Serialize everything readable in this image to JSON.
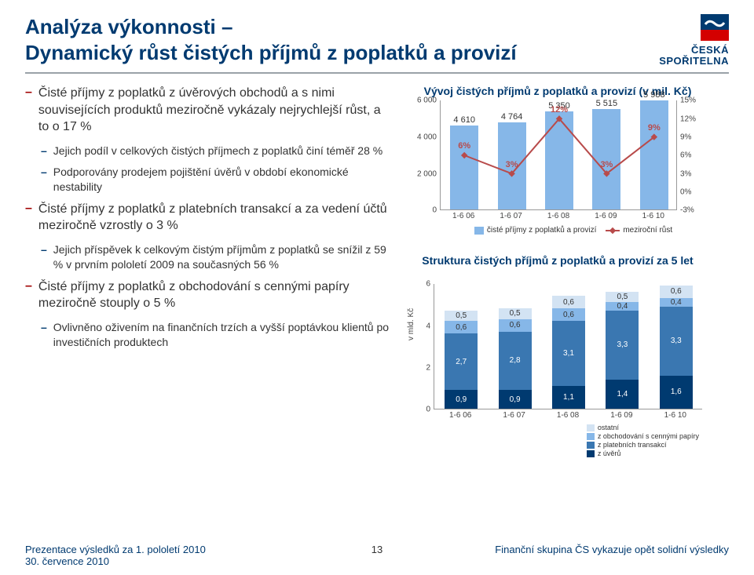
{
  "colors": {
    "brand_blue": "#003a70",
    "accent_red": "#a00000",
    "bar_blue": "#86b7e8",
    "line_red": "#b84b4b",
    "seg_colors": [
      "#003a70",
      "#3a77b1",
      "#86b7e8",
      "#d3e3f3"
    ],
    "grid": "#999999"
  },
  "logo": {
    "line1": "ČESKÁ",
    "line2": "SPOŘITELNA"
  },
  "title": {
    "line1": "Analýza výkonnosti –",
    "line2": "Dynamický růst čistých příjmů z poplatků a provizí"
  },
  "bullets": [
    {
      "level": 0,
      "text": "Čisté příjmy z poplatků z úvěrových obchodů a s nimi souvisejících produktů meziročně vykázaly nejrychlejší růst, a to o 17 %"
    },
    {
      "level": 1,
      "text": "Jejich podíl v celkových čistých příjmech z poplatků činí téměř 28 %"
    },
    {
      "level": 1,
      "text": "Podporovány prodejem pojištění úvěrů v období ekonomické nestability"
    },
    {
      "level": 0,
      "text": "Čisté příjmy z poplatků z platebních transakcí a za vedení účtů meziročně vzrostly o 3 %"
    },
    {
      "level": 1,
      "text": "Jejich příspěvek k celkovým čistým příjmům z poplatků se snížil z 59 % v prvním pololetí 2009 na současných 56 %"
    },
    {
      "level": 0,
      "text": "Čisté příjmy z poplatků z obchodování s cennými papíry meziročně stouply o 5 %"
    },
    {
      "level": 1,
      "text": "Ovlivněno oživením na finančních trzích a vyšší poptávkou klientů po investičních produktech"
    }
  ],
  "chart1": {
    "title": "Vývoj čistých příjmů z poplatků a provizí (v mil. Kč)",
    "categories": [
      "1-6 06",
      "1-6 07",
      "1-6 08",
      "1-6 09",
      "1-6 10"
    ],
    "values": [
      4610,
      4764,
      5350,
      5515,
      5988
    ],
    "growth_pct": [
      6,
      3,
      12,
      3,
      9
    ],
    "yl_ticks": [
      0,
      2000,
      4000,
      6000
    ],
    "yl_labels": [
      "0",
      "2 000",
      "4 000",
      "6 000"
    ],
    "yr_ticks": [
      -3,
      0,
      3,
      6,
      9,
      12,
      15
    ],
    "yr_labels": [
      "-3%",
      "0%",
      "3%",
      "6%",
      "9%",
      "12%",
      "15%"
    ],
    "yl_max": 6000,
    "yr_min": -3,
    "yr_max": 15,
    "bar_labels": [
      "4 610",
      "4 764",
      "5 350",
      "5 515",
      "5 988"
    ],
    "pct_labels": [
      "6%",
      "3%",
      "12%",
      "3%",
      "9%"
    ],
    "legend_bars": "čisté příjmy z poplatků a provizí",
    "legend_line": "meziroční růst"
  },
  "chart2": {
    "title": "Struktura čistých příjmů z poplatků a provizí za 5 let",
    "ylabel": "v mld. Kč",
    "categories": [
      "1-6 06",
      "1-6 07",
      "1-6 08",
      "1-6 09",
      "1-6 10"
    ],
    "y_ticks": [
      0,
      2,
      4,
      6
    ],
    "y_max": 6,
    "series": [
      {
        "name": "z úvěrů",
        "color": "#003a70",
        "values": [
          0.9,
          0.9,
          1.1,
          1.4,
          1.6
        ]
      },
      {
        "name": "z platebních transakcí",
        "color": "#3a77b1",
        "values": [
          2.7,
          2.8,
          3.1,
          3.3,
          3.3
        ]
      },
      {
        "name": "z obchodování s cennými papíry",
        "color": "#86b7e8",
        "values": [
          0.6,
          0.6,
          0.6,
          0.4,
          0.4
        ]
      },
      {
        "name": "ostatní",
        "color": "#d3e3f3",
        "values": [
          0.5,
          0.5,
          0.6,
          0.5,
          0.6
        ]
      }
    ],
    "legend_order": [
      "ostatní",
      "z obchodování s cennými papíry",
      "z platebních transakcí",
      "z úvěrů"
    ]
  },
  "footer": {
    "left1": "Prezentace výsledků za 1. pololetí 2010",
    "left2": "30. července 2010",
    "page": "13",
    "right": "Finanční skupina ČS vykazuje opět solidní výsledky"
  }
}
